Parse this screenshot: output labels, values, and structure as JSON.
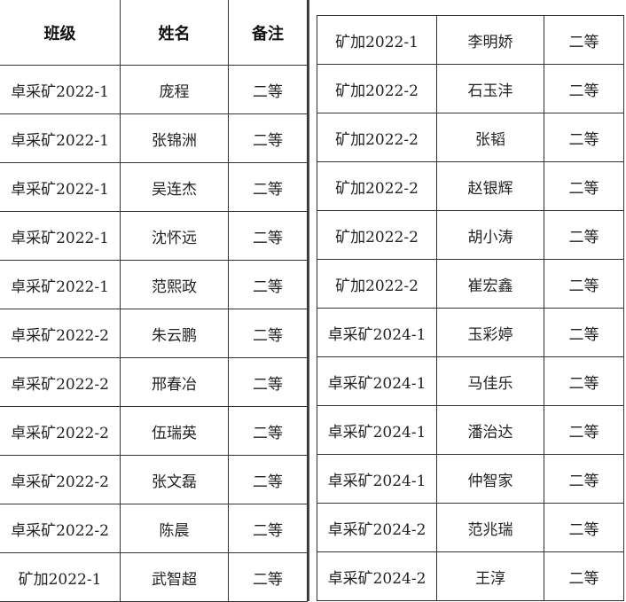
{
  "left_table": {
    "headers": [
      "班级",
      "姓名",
      "备注"
    ],
    "rows": [
      [
        "卓采矿2022-1",
        "庞程",
        "二等"
      ],
      [
        "卓采矿2022-1",
        "张锦洲",
        "二等"
      ],
      [
        "卓采矿2022-1",
        "吴连杰",
        "二等"
      ],
      [
        "卓采矿2022-1",
        "沈怀远",
        "二等"
      ],
      [
        "卓采矿2022-1",
        "范熙政",
        "二等"
      ],
      [
        "卓采矿2022-2",
        "朱云鹏",
        "二等"
      ],
      [
        "卓采矿2022-2",
        "邢春冶",
        "二等"
      ],
      [
        "卓采矿2022-2",
        "伍瑞英",
        "二等"
      ],
      [
        "卓采矿2022-2",
        "张文磊",
        "二等"
      ],
      [
        "卓采矿2022-2",
        "陈晨",
        "二等"
      ],
      [
        "矿加2022-1",
        "武智超",
        "二等"
      ]
    ]
  },
  "right_table": {
    "rows": [
      [
        "矿加2022-1",
        "李明娇",
        "二等"
      ],
      [
        "矿加2022-2",
        "石玉沣",
        "二等"
      ],
      [
        "矿加2022-2",
        "张韬",
        "二等"
      ],
      [
        "矿加2022-2",
        "赵银辉",
        "二等"
      ],
      [
        "矿加2022-2",
        "胡小涛",
        "二等"
      ],
      [
        "矿加2022-2",
        "崔宏鑫",
        "二等"
      ],
      [
        "卓采矿2024-1",
        "玉彩婷",
        "二等"
      ],
      [
        "卓采矿2024-1",
        "马佳乐",
        "二等"
      ],
      [
        "卓采矿2024-1",
        "潘治达",
        "二等"
      ],
      [
        "卓采矿2024-1",
        "仲智家",
        "二等"
      ],
      [
        "卓采矿2024-2",
        "范兆瑞",
        "二等"
      ],
      [
        "卓采矿2024-2",
        "王淳",
        "二等"
      ]
    ]
  }
}
